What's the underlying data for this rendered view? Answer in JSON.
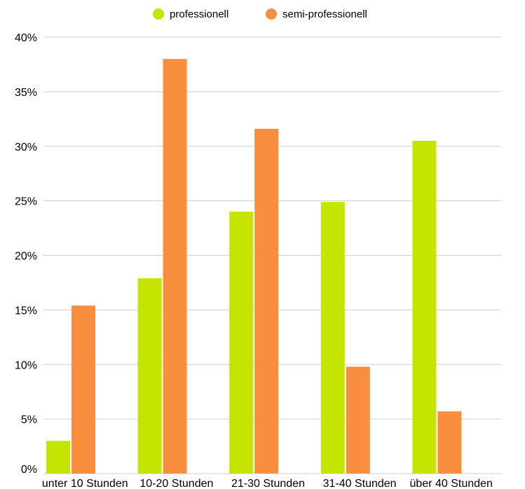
{
  "chart_data": {
    "type": "bar",
    "categories": [
      "unter 10 Stunden",
      "10-20 Stunden",
      "21-30 Stunden",
      "31-40 Stunden",
      "über 40 Stunden"
    ],
    "series": [
      {
        "name": "professionell",
        "color": "#c5e500",
        "values": [
          3.0,
          17.9,
          24.0,
          24.9,
          30.5
        ]
      },
      {
        "name": "semi-professionell",
        "color": "#f98e3e",
        "values": [
          15.4,
          38.0,
          31.6,
          9.8,
          5.7
        ]
      }
    ],
    "y_ticks": [
      "0%",
      "5%",
      "10%",
      "15%",
      "20%",
      "25%",
      "30%",
      "35%",
      "40%"
    ],
    "ylim": [
      0,
      40
    ],
    "y_unit": "%",
    "grid": true,
    "legend_position": "top-center"
  }
}
